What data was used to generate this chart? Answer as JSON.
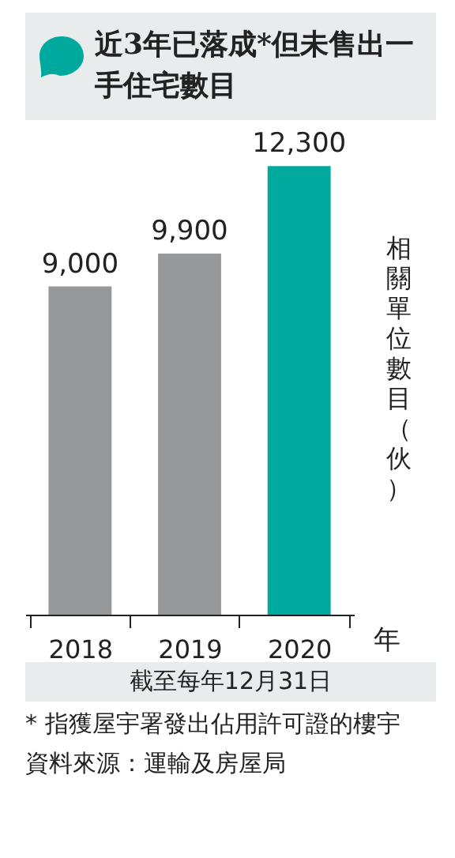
{
  "chart_data": {
    "type": "bar",
    "title": "近3年已落成*但未售出一手住宅數目",
    "subtitle": "截至每年12月31日",
    "xlabel": "年",
    "ylabel": "相關單位數目（伙）",
    "categories": [
      "2018",
      "2019",
      "2020"
    ],
    "values": [
      9000,
      9900,
      12300
    ],
    "value_labels": [
      "9,000",
      "9,900",
      "12,300"
    ],
    "colors": [
      "#96989a",
      "#96989a",
      "#00a99d"
    ],
    "annotations": [
      "* 指獲屋宇署發出佔用許可證的樓宇",
      "資料來源：運輸及房屋局"
    ]
  }
}
